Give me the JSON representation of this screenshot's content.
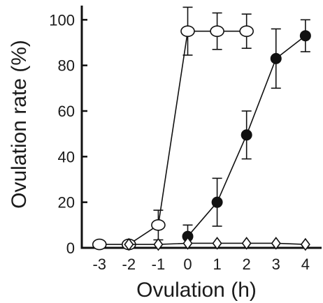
{
  "chart_data": {
    "type": "scatter",
    "xlabel": "Ovulation (h)",
    "ylabel": "Ovulation rate (%)",
    "xlim": [
      -3.6,
      4.55
    ],
    "ylim": [
      0,
      105
    ],
    "x_ticks": [
      "-3",
      "-2",
      "-1",
      "0",
      "1",
      "2",
      "3",
      "4"
    ],
    "y_ticks": [
      "0",
      "20",
      "40",
      "60",
      "80",
      "100"
    ],
    "grid": false,
    "legend": "none",
    "series": [
      {
        "marker": "open-circle",
        "points": [
          {
            "x": -3,
            "y": 1.5
          },
          {
            "x": -2,
            "y": 1.5
          },
          {
            "x": -1,
            "y": 10,
            "err": 6.5
          },
          {
            "x": 0,
            "y": 95,
            "err": 10.5
          },
          {
            "x": 1,
            "y": 95,
            "err": 8
          },
          {
            "x": 2,
            "y": 95,
            "err": 7.5
          }
        ]
      },
      {
        "marker": "filled-circle",
        "points": [
          {
            "x": 0,
            "y": 5,
            "err": 5
          },
          {
            "x": 1,
            "y": 20,
            "err": 10.5
          },
          {
            "x": 2,
            "y": 49.5,
            "err": 10.5
          },
          {
            "x": 3,
            "y": 83,
            "err": 13
          },
          {
            "x": 4,
            "y": 93,
            "err": 7
          }
        ]
      },
      {
        "marker": "open-diamond",
        "points": [
          {
            "x": -2,
            "y": 1.5
          },
          {
            "x": -1,
            "y": 1.5
          },
          {
            "x": 0,
            "y": 2
          },
          {
            "x": 1,
            "y": 2
          },
          {
            "x": 2,
            "y": 2
          },
          {
            "x": 3,
            "y": 2
          },
          {
            "x": 4,
            "y": 1.5
          }
        ]
      }
    ]
  }
}
